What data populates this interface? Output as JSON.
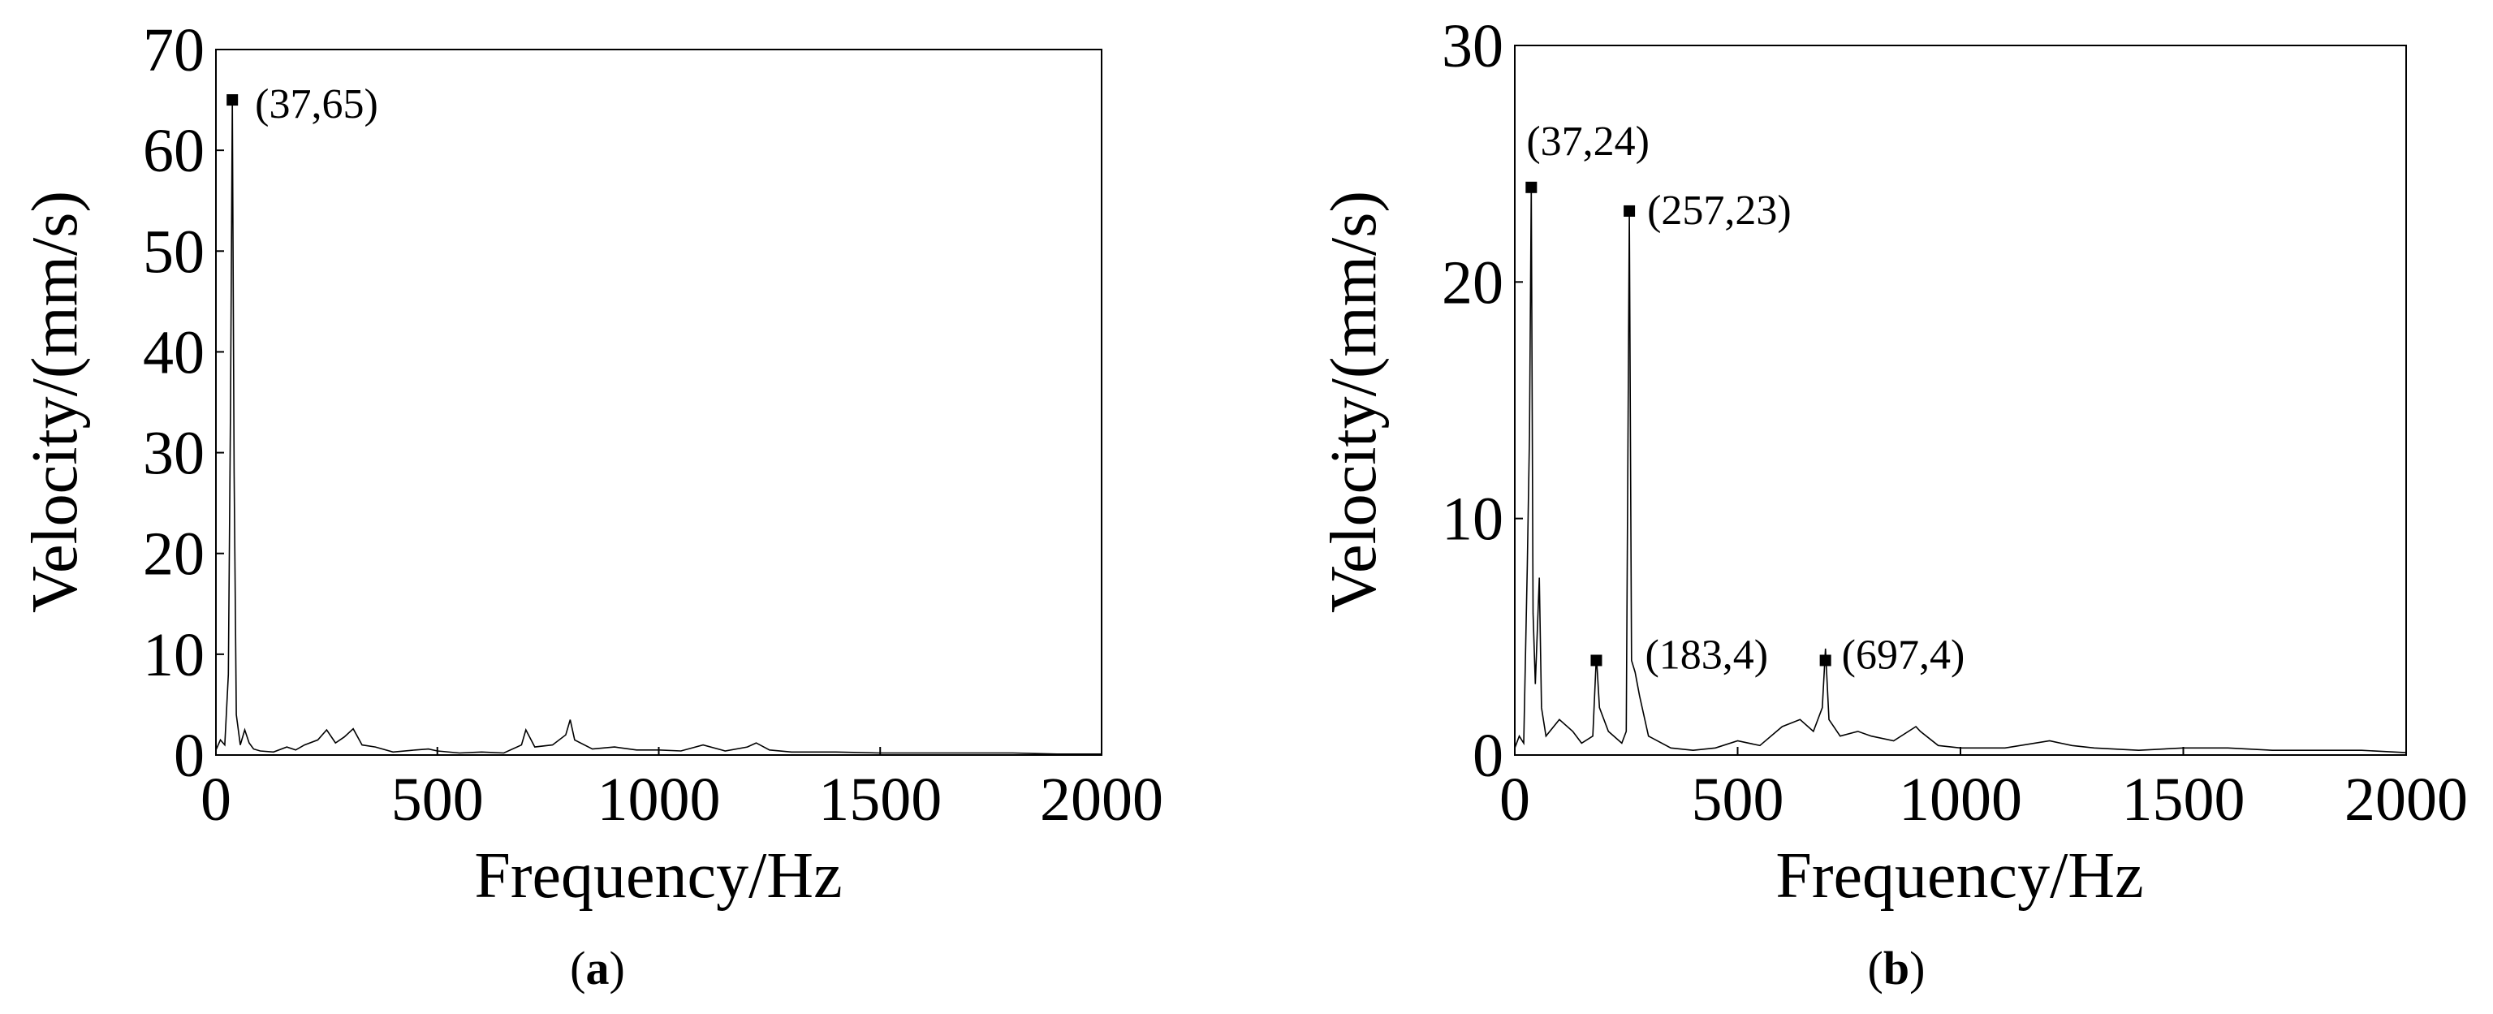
{
  "figure": {
    "captions": [
      {
        "prefix": "(",
        "letter": "a",
        "suffix": ")"
      },
      {
        "prefix": "(",
        "letter": "b",
        "suffix": ")"
      }
    ]
  },
  "chart_data": [
    {
      "type": "line",
      "panel": "a",
      "xlabel": "Frequency/Hz",
      "ylabel": "Velocity/(mm/s)",
      "xlim": [
        0,
        2000
      ],
      "ylim": [
        0,
        70
      ],
      "xticks": [
        "0",
        "500",
        "1000",
        "1500",
        "2000"
      ],
      "yticks": [
        "0",
        "10",
        "20",
        "30",
        "40",
        "50",
        "60",
        "70"
      ],
      "grid": false,
      "series": [
        {
          "x": [
            0,
            10,
            20,
            28,
            33,
            37,
            41,
            46,
            55,
            65,
            75,
            85,
            100,
            130,
            160,
            180,
            200,
            230,
            250,
            270,
            290,
            310,
            330,
            360,
            400,
            450,
            480,
            500,
            550,
            600,
            650,
            690,
            700,
            720,
            760,
            790,
            800,
            810,
            850,
            900,
            950,
            1000,
            1050,
            1100,
            1150,
            1200,
            1220,
            1250,
            1300,
            1400,
            1500,
            1600,
            1700,
            1800,
            1900,
            2000
          ],
          "y": [
            0.5,
            1.5,
            1.0,
            8.0,
            35.0,
            65.0,
            28.0,
            4.0,
            1.0,
            2.5,
            1.2,
            0.6,
            0.4,
            0.3,
            0.8,
            0.5,
            1.0,
            1.5,
            2.5,
            1.2,
            1.8,
            2.6,
            1.0,
            0.8,
            0.3,
            0.5,
            0.6,
            0.4,
            0.2,
            0.3,
            0.2,
            1.0,
            2.5,
            0.8,
            1.0,
            2.0,
            3.5,
            1.5,
            0.6,
            0.8,
            0.5,
            0.5,
            0.4,
            1.0,
            0.4,
            0.8,
            1.2,
            0.5,
            0.3,
            0.3,
            0.2,
            0.2,
            0.2,
            0.2,
            0.1,
            0.1
          ]
        }
      ],
      "markers": [
        {
          "x": 37,
          "y": 65
        }
      ],
      "annotations": [
        {
          "text": "(37,65)",
          "x": 37,
          "y": 65
        }
      ]
    },
    {
      "type": "line",
      "panel": "b",
      "xlabel": "Frequency/Hz",
      "ylabel": "Velocity/(mm/s)",
      "xlim": [
        0,
        2000
      ],
      "ylim": [
        0,
        30
      ],
      "xticks": [
        "0",
        "500",
        "1000",
        "1500",
        "2000"
      ],
      "yticks": [
        "0",
        "10",
        "20",
        "30"
      ],
      "grid": false,
      "series": [
        {
          "x": [
            0,
            10,
            20,
            28,
            33,
            37,
            41,
            46,
            55,
            60,
            70,
            100,
            130,
            150,
            175,
            183,
            190,
            210,
            240,
            250,
            257,
            262,
            270,
            280,
            300,
            350,
            400,
            450,
            500,
            550,
            600,
            640,
            670,
            690,
            697,
            705,
            730,
            770,
            800,
            850,
            900,
            910,
            950,
            1000,
            1100,
            1200,
            1250,
            1300,
            1400,
            1500,
            1600,
            1700,
            1800,
            1900,
            2000
          ],
          "y": [
            0.3,
            0.8,
            0.5,
            8.0,
            13.5,
            24.0,
            6.0,
            3.0,
            7.5,
            2.0,
            0.8,
            1.5,
            1.0,
            0.5,
            0.8,
            4.2,
            2.0,
            1.0,
            0.5,
            1.0,
            23.0,
            4.0,
            3.5,
            2.5,
            0.8,
            0.3,
            0.2,
            0.3,
            0.6,
            0.4,
            1.2,
            1.5,
            1.0,
            2.0,
            4.5,
            1.5,
            0.8,
            1.0,
            0.8,
            0.6,
            1.2,
            1.0,
            0.4,
            0.3,
            0.3,
            0.6,
            0.4,
            0.3,
            0.2,
            0.3,
            0.3,
            0.2,
            0.2,
            0.2,
            0.1
          ]
        }
      ],
      "markers": [
        {
          "x": 37,
          "y": 24
        },
        {
          "x": 257,
          "y": 23
        },
        {
          "x": 183,
          "y": 4
        },
        {
          "x": 697,
          "y": 4
        }
      ],
      "annotations": [
        {
          "text": "(37,24)",
          "x": 37,
          "y": 24
        },
        {
          "text": "(257,23)",
          "x": 257,
          "y": 23
        },
        {
          "text": "(183,4)",
          "x": 183,
          "y": 4
        },
        {
          "text": "(697,4)",
          "x": 697,
          "y": 4
        }
      ]
    }
  ]
}
